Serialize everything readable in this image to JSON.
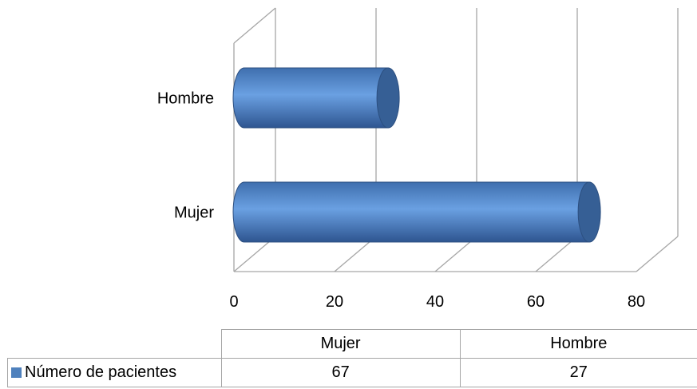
{
  "chart_data": {
    "type": "bar",
    "orientation": "horizontal",
    "style": "3d-cylinder",
    "categories": [
      "Mujer",
      "Hombre"
    ],
    "series": [
      {
        "name": "Número de pacientes",
        "values": [
          67,
          27
        ],
        "color": "#4f81bd"
      }
    ],
    "xlim": [
      0,
      80
    ],
    "xticks": [
      "0",
      "20",
      "40",
      "60",
      "80"
    ],
    "grid": true,
    "legend": "data-table"
  },
  "table": {
    "headers": [
      "Mujer",
      "Hombre"
    ],
    "row_label": "Número de pacientes",
    "values": [
      "67",
      "27"
    ]
  }
}
